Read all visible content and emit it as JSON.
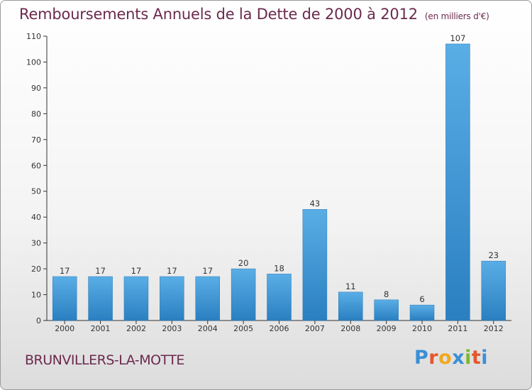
{
  "title": "Remboursements Annuels de la Dette de 2000 à 2012",
  "title_unit": "(en milliers d'€)",
  "commune": "BRUNVILLERS-LA-MOTTE",
  "brand": {
    "letters": [
      "P",
      "r",
      "o",
      "x",
      "i",
      "t",
      "i"
    ],
    "colors": [
      "#3a8fd6",
      "#e3572b",
      "#f2a81d",
      "#3a8fd6",
      "#7cb82f",
      "#e3572b",
      "#3a8fd6"
    ]
  },
  "colors": {
    "bar_top": "#5aaee6",
    "bar_bottom": "#2a7fc0",
    "title": "#6b2a4e"
  },
  "chart_data": {
    "type": "bar",
    "title": "Remboursements Annuels de la Dette de 2000 à 2012",
    "categories": [
      "2000",
      "2001",
      "2002",
      "2003",
      "2004",
      "2005",
      "2006",
      "2007",
      "2008",
      "2009",
      "2010",
      "2011",
      "2012"
    ],
    "values": [
      17,
      17,
      17,
      17,
      17,
      20,
      18,
      43,
      11,
      8,
      6,
      107,
      23
    ],
    "ylim": [
      0,
      110
    ],
    "yticks": [
      0,
      10,
      20,
      30,
      40,
      50,
      60,
      70,
      80,
      90,
      100,
      110
    ],
    "grid": false,
    "xlabel": "",
    "ylabel": ""
  }
}
